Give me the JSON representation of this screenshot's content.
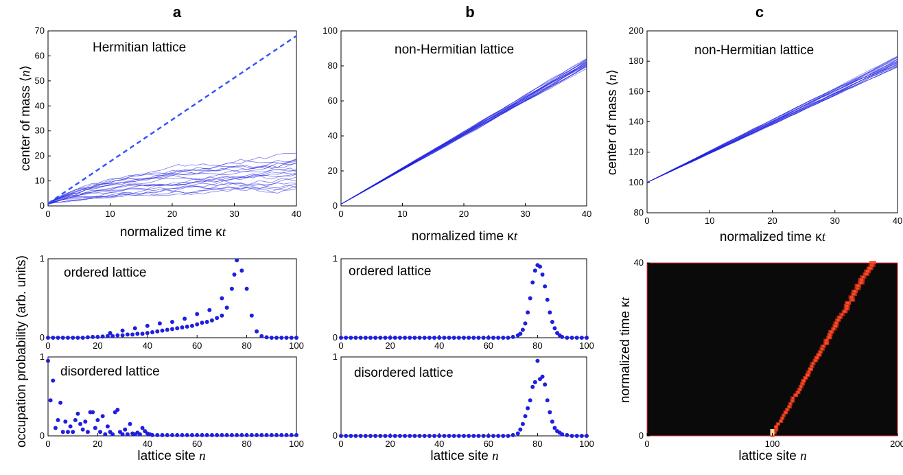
{
  "panel_letters": [
    "a",
    "b",
    "c"
  ],
  "shared_ylabel": "occupation probability (arb. units)",
  "colors": {
    "series": "#1f1fe0",
    "dashed": "#3355ff",
    "heat_bg": "#0a0a0a",
    "heat_hot": "#ff3010"
  },
  "chart_data": [
    {
      "id": "a-top",
      "type": "line",
      "inset_label": "Hermitian lattice",
      "xlabel": "normalized time κt",
      "ylabel": "center of mass ⟨n⟩",
      "xlim": [
        0,
        40
      ],
      "ylim": [
        0,
        70
      ],
      "xticks": [
        0,
        10,
        20,
        30,
        40
      ],
      "yticks": [
        0,
        10,
        20,
        30,
        40,
        50,
        60,
        70
      ],
      "dashed": {
        "x": [
          0,
          40
        ],
        "y": [
          1,
          68
        ]
      },
      "ensemble": {
        "count": 20,
        "start": 1,
        "end_min": 6,
        "end_max": 20
      }
    },
    {
      "id": "b-top",
      "type": "line",
      "inset_label": "non-Hermitian lattice",
      "xlabel": "normalized time κt",
      "ylabel": "",
      "xlim": [
        0,
        40
      ],
      "ylim": [
        0,
        100
      ],
      "xticks": [
        0,
        10,
        20,
        30,
        40
      ],
      "yticks": [
        0,
        20,
        40,
        60,
        80,
        100
      ],
      "ensemble": {
        "count": 20,
        "start": 1,
        "end_min": 79,
        "end_max": 84
      }
    },
    {
      "id": "c-top",
      "type": "line",
      "inset_label": "non-Hermitian lattice",
      "xlabel": "normalized time κt",
      "ylabel": "center of mass ⟨n⟩",
      "xlim": [
        0,
        40
      ],
      "ylim": [
        80,
        200
      ],
      "xticks": [
        0,
        10,
        20,
        30,
        40
      ],
      "yticks": [
        80,
        100,
        120,
        140,
        160,
        180,
        200
      ],
      "ensemble": {
        "count": 20,
        "start": 100,
        "end_min": 176,
        "end_max": 183
      }
    },
    {
      "id": "a-ordered",
      "type": "scatter",
      "inset_label": "ordered lattice",
      "xlim": [
        0,
        100
      ],
      "ylim": [
        0,
        1
      ],
      "xticks": [
        0,
        20,
        40,
        60,
        80,
        100
      ],
      "yticks": [
        0,
        1
      ],
      "x": [
        0,
        2,
        4,
        6,
        8,
        10,
        12,
        14,
        16,
        18,
        20,
        22,
        24,
        26,
        28,
        30,
        32,
        34,
        36,
        38,
        40,
        42,
        44,
        46,
        48,
        50,
        52,
        54,
        56,
        58,
        60,
        62,
        64,
        66,
        68,
        70,
        72,
        74,
        76,
        78,
        80,
        82,
        84,
        86,
        88,
        90,
        92,
        94,
        96,
        98,
        100,
        25,
        30,
        35,
        40,
        45,
        50,
        55,
        60,
        65,
        70,
        75
      ],
      "y": [
        0,
        0,
        0,
        0,
        0,
        0,
        0,
        0,
        0.005,
        0.01,
        0.01,
        0.015,
        0.02,
        0.02,
        0.03,
        0.03,
        0.04,
        0.04,
        0.05,
        0.05,
        0.06,
        0.07,
        0.08,
        0.09,
        0.1,
        0.11,
        0.12,
        0.13,
        0.14,
        0.15,
        0.17,
        0.19,
        0.2,
        0.22,
        0.25,
        0.28,
        0.38,
        0.62,
        0.98,
        0.85,
        0.62,
        0.28,
        0.08,
        0.02,
        0.005,
        0,
        0,
        0,
        0,
        0,
        0,
        0.06,
        0.09,
        0.12,
        0.15,
        0.18,
        0.2,
        0.24,
        0.3,
        0.35,
        0.5,
        0.8
      ]
    },
    {
      "id": "a-disordered",
      "type": "scatter",
      "inset_label": "disordered lattice",
      "xlabel": "lattice site n",
      "xlim": [
        0,
        100
      ],
      "ylim": [
        0,
        1
      ],
      "xticks": [
        0,
        20,
        40,
        60,
        80,
        100
      ],
      "yticks": [
        0,
        1
      ],
      "x": [
        0,
        1,
        2,
        3,
        4,
        5,
        6,
        7,
        8,
        9,
        10,
        11,
        12,
        13,
        14,
        15,
        16,
        17,
        18,
        19,
        20,
        21,
        22,
        23,
        24,
        25,
        26,
        27,
        28,
        29,
        30,
        31,
        32,
        33,
        34,
        35,
        36,
        37,
        38,
        39,
        40,
        41,
        42,
        44,
        46,
        48,
        50,
        52,
        54,
        56,
        58,
        60,
        62,
        64,
        66,
        68,
        70,
        72,
        74,
        76,
        78,
        80,
        82,
        84,
        86,
        88,
        90,
        92,
        94,
        96,
        98,
        100
      ],
      "y": [
        0.95,
        0.45,
        0.7,
        0.1,
        0.2,
        0.42,
        0.05,
        0.18,
        0.05,
        0.12,
        0.05,
        0.2,
        0.28,
        0.15,
        0.08,
        0.18,
        0.05,
        0.3,
        0.3,
        0.1,
        0.2,
        0.05,
        0.25,
        0.02,
        0.12,
        0.05,
        0.02,
        0.3,
        0.33,
        0.05,
        0.02,
        0.08,
        0.02,
        0.15,
        0.03,
        0.02,
        0.04,
        0.02,
        0.1,
        0.06,
        0.03,
        0.02,
        0.01,
        0.01,
        0.01,
        0.01,
        0.01,
        0.01,
        0.01,
        0.01,
        0.01,
        0.01,
        0.01,
        0.01,
        0.01,
        0.01,
        0.01,
        0.01,
        0.01,
        0.01,
        0.01,
        0.01,
        0.01,
        0.01,
        0.01,
        0.01,
        0.01,
        0.01,
        0.01,
        0.01,
        0.01,
        0.01
      ]
    },
    {
      "id": "b-ordered",
      "type": "scatter",
      "inset_label": "ordered lattice",
      "xlim": [
        0,
        100
      ],
      "ylim": [
        0,
        1
      ],
      "xticks": [
        0,
        20,
        40,
        60,
        80,
        100
      ],
      "yticks": [
        0,
        1
      ],
      "x": [
        0,
        2,
        4,
        6,
        8,
        10,
        12,
        14,
        16,
        18,
        20,
        22,
        24,
        26,
        28,
        30,
        32,
        34,
        36,
        38,
        40,
        42,
        44,
        46,
        48,
        50,
        52,
        54,
        56,
        58,
        60,
        62,
        64,
        66,
        68,
        70,
        72,
        73,
        74,
        75,
        76,
        77,
        78,
        79,
        80,
        81,
        82,
        83,
        84,
        85,
        86,
        87,
        88,
        89,
        90,
        92,
        94,
        96,
        98,
        100
      ],
      "y": [
        0,
        0,
        0,
        0,
        0,
        0,
        0,
        0,
        0,
        0,
        0,
        0,
        0,
        0,
        0,
        0,
        0,
        0,
        0,
        0,
        0,
        0,
        0,
        0,
        0,
        0,
        0,
        0,
        0,
        0,
        0,
        0,
        0,
        0,
        0,
        0.01,
        0.03,
        0.05,
        0.1,
        0.18,
        0.32,
        0.5,
        0.7,
        0.85,
        0.92,
        0.9,
        0.8,
        0.65,
        0.48,
        0.32,
        0.2,
        0.12,
        0.06,
        0.03,
        0.01,
        0,
        0,
        0,
        0,
        0
      ]
    },
    {
      "id": "b-disordered",
      "type": "scatter",
      "inset_label": "disordered lattice",
      "xlabel": "lattice site n",
      "xlim": [
        0,
        100
      ],
      "ylim": [
        0,
        1
      ],
      "xticks": [
        0,
        20,
        40,
        60,
        80,
        100
      ],
      "yticks": [
        0,
        1
      ],
      "x": [
        0,
        2,
        4,
        6,
        8,
        10,
        12,
        14,
        16,
        18,
        20,
        22,
        24,
        26,
        28,
        30,
        32,
        34,
        36,
        38,
        40,
        42,
        44,
        46,
        48,
        50,
        52,
        54,
        56,
        58,
        60,
        62,
        64,
        66,
        68,
        70,
        72,
        73,
        74,
        75,
        76,
        77,
        78,
        79,
        80,
        81,
        82,
        83,
        84,
        85,
        86,
        87,
        88,
        89,
        90,
        92,
        94,
        96,
        98,
        100
      ],
      "y": [
        0,
        0,
        0,
        0,
        0,
        0,
        0,
        0,
        0,
        0,
        0,
        0,
        0,
        0,
        0,
        0,
        0,
        0,
        0,
        0,
        0,
        0,
        0,
        0,
        0,
        0,
        0,
        0,
        0,
        0,
        0,
        0,
        0,
        0,
        0,
        0.01,
        0.03,
        0.08,
        0.15,
        0.25,
        0.35,
        0.45,
        0.62,
        0.68,
        0.95,
        0.72,
        0.75,
        0.65,
        0.45,
        0.3,
        0.18,
        0.1,
        0.06,
        0.04,
        0.02,
        0.01,
        0,
        0,
        0,
        0
      ]
    },
    {
      "id": "c-heatmap",
      "type": "heatmap",
      "xlabel": "lattice site n",
      "ylabel": "normalized time κt",
      "xlim": [
        0,
        200
      ],
      "ylim": [
        0,
        40
      ],
      "xticks": [
        0,
        100,
        200
      ],
      "yticks": [
        0,
        40
      ],
      "trajectory": {
        "t": [
          0,
          40
        ],
        "n_start": 100,
        "n_end": 180
      }
    }
  ]
}
